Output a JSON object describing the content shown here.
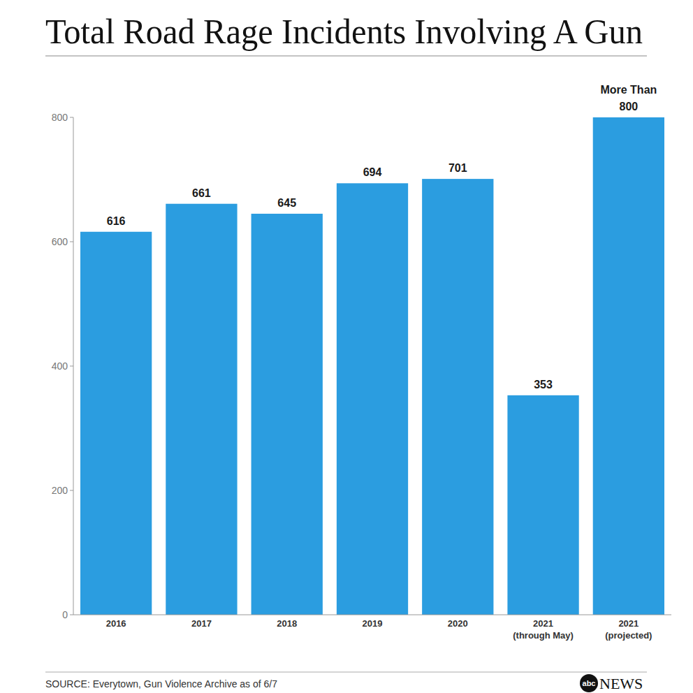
{
  "chart_data": {
    "type": "bar",
    "title": "Total Road Rage Incidents Involving A Gun",
    "categories": [
      "2016",
      "2017",
      "2018",
      "2019",
      "2020",
      "2021 (through May)",
      "2021 (projected)"
    ],
    "values": [
      616,
      661,
      645,
      694,
      701,
      353,
      800
    ],
    "value_labels": [
      "616",
      "661",
      "645",
      "694",
      "701",
      "353",
      "More Than 800"
    ],
    "data_labels": true,
    "color": "#2b9de0",
    "ylim": [
      0,
      800
    ],
    "yticks": [
      0,
      200,
      400,
      600,
      800
    ],
    "grid": false,
    "source": "SOURCE: Everytown, Gun Violence Archive as of 6/7",
    "logo_mark": "abc",
    "logo_text": "NEWS"
  }
}
